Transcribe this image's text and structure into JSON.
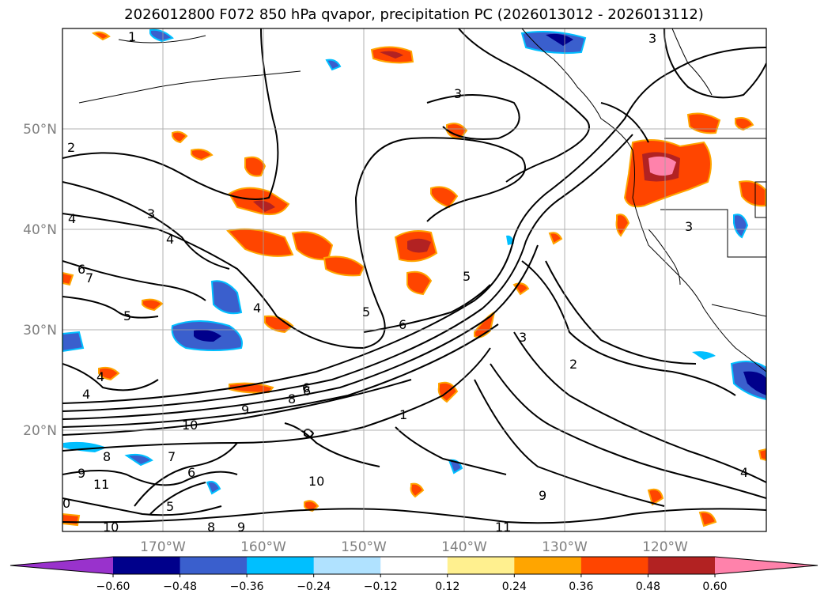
{
  "title": "2026012800 F072 850 hPa qvapor, precipitation PC (2026013012 - 2026013112)",
  "lat_labels": [
    "50°N",
    "40°N",
    "30°N",
    "20°N"
  ],
  "lon_labels": [
    "170°W",
    "160°W",
    "150°W",
    "140°W",
    "130°W",
    "120°W"
  ],
  "contour_labels": [
    "1",
    "3",
    "3",
    "2",
    "4",
    "3",
    "4",
    "6",
    "7",
    "5",
    "4",
    "5",
    "6",
    "5",
    "4",
    "3",
    "2",
    "1",
    "3",
    "6",
    "4",
    "8",
    "9",
    "10",
    "9",
    "8",
    "7",
    "11",
    "10",
    "6",
    "5",
    "8",
    "9",
    "10",
    "11",
    "9",
    "4",
    "6",
    "0"
  ],
  "colorbar": {
    "ticks": [
      "−0.60",
      "−0.48",
      "−0.36",
      "−0.24",
      "−0.12",
      "0.12",
      "0.24",
      "0.36",
      "0.48",
      "0.60"
    ],
    "colors": [
      "#9932cc",
      "#00008b",
      "#3a5fcd",
      "#00bfff",
      "#b0e2ff",
      "#ffffff",
      "#fff08f",
      "#ffa500",
      "#ff4500",
      "#b22222",
      "#ff82ab"
    ]
  }
}
